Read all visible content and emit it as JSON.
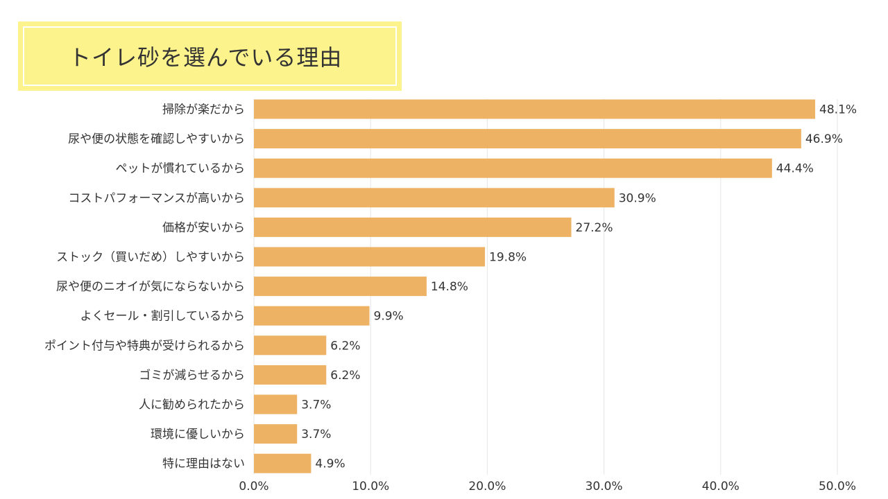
{
  "title": "トイレ砂を選んでいる理由",
  "colors": {
    "bar": "#edb264",
    "title_bg": "#fdf38d",
    "grid": "#e5e5e5",
    "text": "#333333"
  },
  "chart_data": {
    "type": "bar",
    "orientation": "horizontal",
    "title": "トイレ砂を選んでいる理由",
    "categories": [
      "掃除が楽だから",
      "尿や便の状態を確認しやすいから",
      "ペットが慣れているから",
      "コストパフォーマンスが高いから",
      "価格が安いから",
      "ストック（買いだめ）しやすいから",
      "尿や便のニオイが気にならないから",
      "よくセール・割引しているから",
      "ポイント付与や特典が受けられるから",
      "ゴミが減らせるから",
      "人に勧められたから",
      "環境に優しいから",
      "特に理由はない"
    ],
    "values": [
      48.1,
      46.9,
      44.4,
      30.9,
      27.2,
      19.8,
      14.8,
      9.9,
      6.2,
      6.2,
      3.7,
      3.7,
      4.9
    ],
    "value_labels": [
      "48.1%",
      "46.9%",
      "44.4%",
      "30.9%",
      "27.2%",
      "19.8%",
      "14.8%",
      "9.9%",
      "6.2%",
      "6.2%",
      "3.7%",
      "3.7%",
      "4.9%"
    ],
    "xlim": [
      0,
      50
    ],
    "xticks": [
      0,
      10,
      20,
      30,
      40,
      50
    ],
    "xtick_labels": [
      "0.0%",
      "10.0%",
      "20.0%",
      "30.0%",
      "40.0%",
      "50.0%"
    ],
    "grid": true,
    "legend": "none"
  }
}
